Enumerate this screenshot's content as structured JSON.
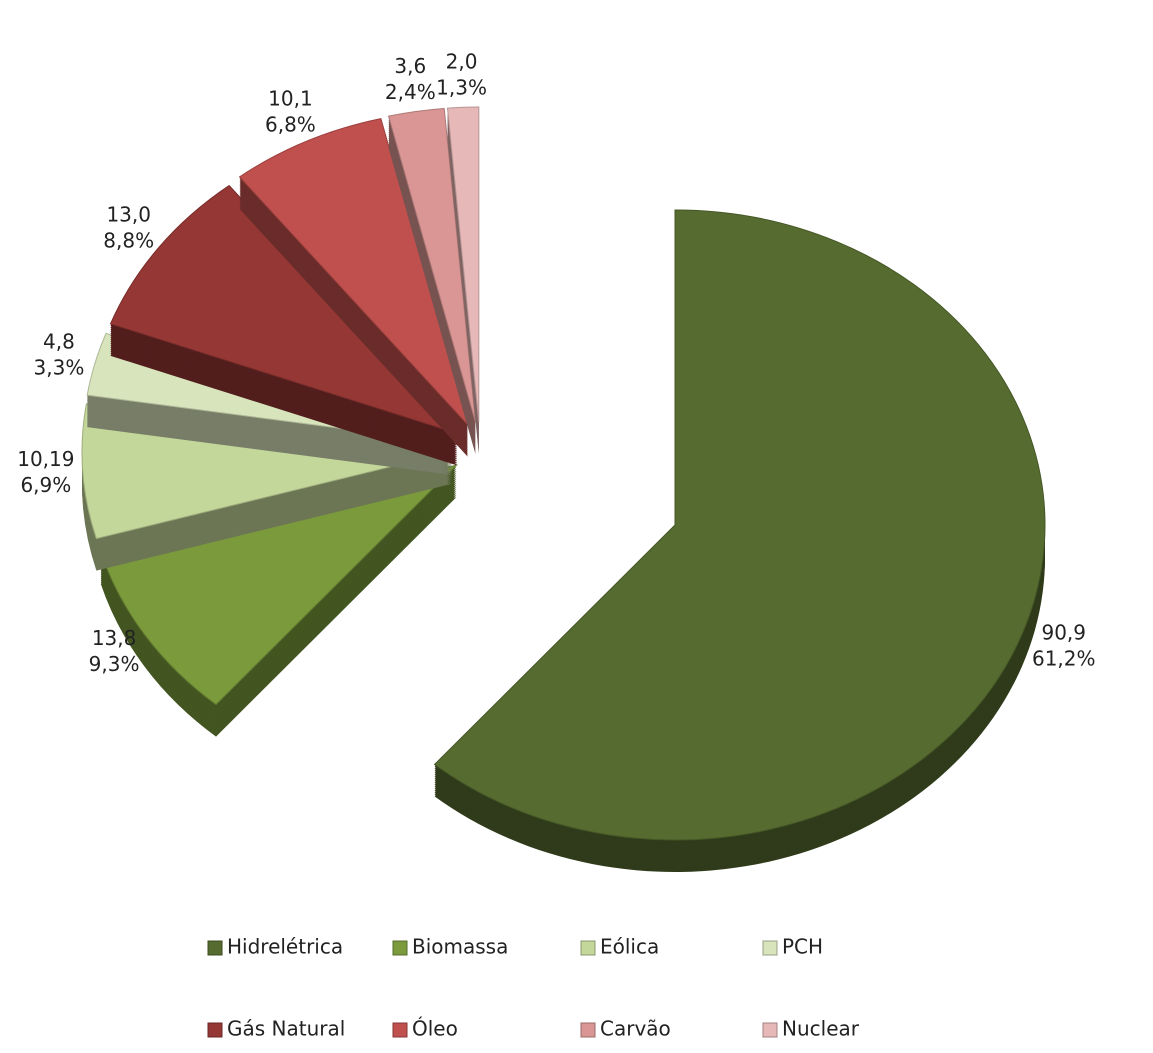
{
  "chart_data": {
    "type": "pie",
    "categories": [
      "Hidrelétrica",
      "Biomassa",
      "Eólica",
      "PCH",
      "Gás Natural",
      "Óleo",
      "Carvão",
      "Nuclear"
    ],
    "values": [
      90.9,
      13.8,
      10.19,
      4.8,
      13.0,
      10.1,
      3.6,
      2.0
    ],
    "value_labels": [
      "90,9",
      "13,8",
      "10,19",
      "4,8",
      "13,0",
      "10,1",
      "3,6",
      "2,0"
    ],
    "percentages": [
      61.2,
      9.3,
      6.9,
      3.3,
      8.8,
      6.8,
      2.4,
      1.3
    ],
    "percentage_labels": [
      "61,2%",
      "9,3%",
      "6,9%",
      "3,3%",
      "8,8%",
      "6,8%",
      "2,4%",
      "1,3%"
    ],
    "colors": [
      "#566b30",
      "#7a9a3c",
      "#c4d79b",
      "#d8e4bc",
      "#953735",
      "#c0504d",
      "#d99694",
      "#e6b9b8"
    ],
    "legend": "bottom"
  }
}
